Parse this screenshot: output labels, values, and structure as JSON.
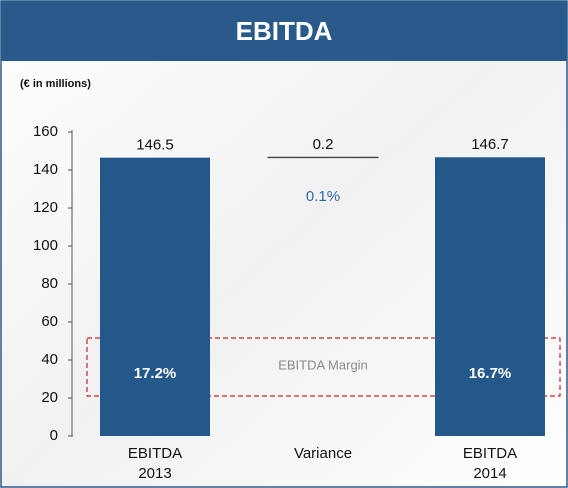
{
  "chart_data": {
    "type": "waterfall",
    "title": "EBITDA",
    "subtitle": "(€ in millions)",
    "categories": [
      "EBITDA 2013",
      "Variance",
      "EBITDA 2014"
    ],
    "values": [
      146.5,
      0.2,
      146.7
    ],
    "measures": [
      "absolute",
      "relative",
      "absolute"
    ],
    "color": "#24578a",
    "variance_color": "#444444",
    "pct_color": "#2f6aa8",
    "variance_pct": "0.1%",
    "margin_label": "EBITDA Margin",
    "margins": [
      "17.2%",
      "16.7%"
    ],
    "margin_box_color": "#c0282d",
    "ylim": [
      0,
      160
    ],
    "yticks": [
      0,
      20,
      40,
      60,
      80,
      100,
      120,
      140,
      160
    ]
  }
}
